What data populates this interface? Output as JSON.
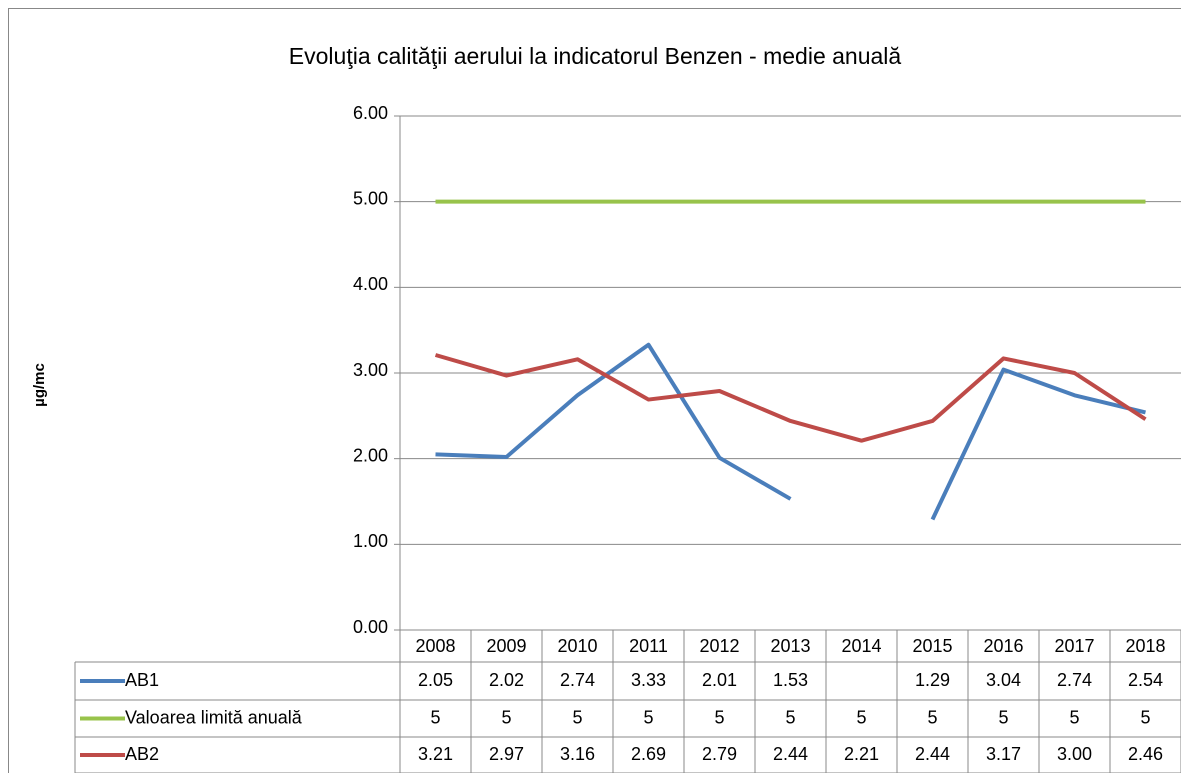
{
  "chart_data": {
    "type": "line",
    "title": "Evoluţia calităţii aerului la indicatorul Benzen - medie anuală",
    "y_label": "µg/mc",
    "categories": [
      "2008",
      "2009",
      "2010",
      "2011",
      "2012",
      "2013",
      "2014",
      "2015",
      "2016",
      "2017",
      "2018"
    ],
    "ylim": [
      0,
      6
    ],
    "yticks": [
      {
        "value": 0,
        "label": "0.00"
      },
      {
        "value": 1,
        "label": "1.00"
      },
      {
        "value": 2,
        "label": "2.00"
      },
      {
        "value": 3,
        "label": "3.00"
      },
      {
        "value": 4,
        "label": "4.00"
      },
      {
        "value": 5,
        "label": "5.00"
      },
      {
        "value": 6,
        "label": "6.00"
      }
    ],
    "grid": true,
    "series": [
      {
        "name": "AB1",
        "color": "#4a7ebb",
        "values": [
          2.05,
          2.02,
          2.74,
          3.33,
          2.01,
          1.53,
          null,
          1.29,
          3.04,
          2.74,
          2.54
        ],
        "value_labels": [
          "2.05",
          "2.02",
          "2.74",
          "3.33",
          "2.01",
          "1.53",
          null,
          "1.29",
          "3.04",
          "2.74",
          "2.54"
        ]
      },
      {
        "name": "Valoarea limită anuală",
        "color": "#98c34b",
        "values": [
          5,
          5,
          5,
          5,
          5,
          5,
          5,
          5,
          5,
          5,
          5
        ]
      },
      {
        "name": "AB2",
        "color": "#be4b48",
        "values": [
          3.21,
          2.97,
          3.16,
          2.69,
          2.79,
          2.44,
          2.21,
          2.44,
          3.17,
          3.0,
          2.46
        ],
        "value_labels": [
          "3.21",
          "2.97",
          "3.16",
          "2.69",
          "2.79",
          "2.44",
          "2.21",
          "2.44",
          "3.17",
          "3.00",
          "2.46"
        ]
      }
    ]
  }
}
